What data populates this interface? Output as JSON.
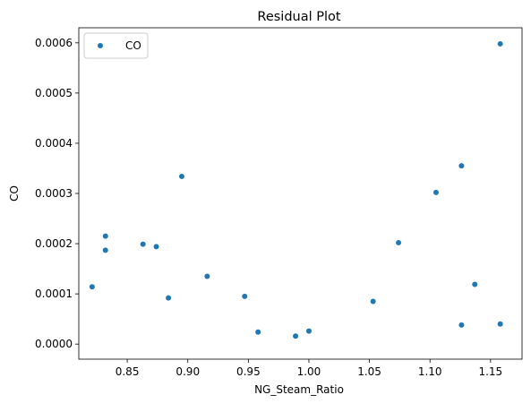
{
  "chart_data": {
    "type": "scatter",
    "title": "Residual Plot",
    "xlabel": "NG_Steam_Ratio",
    "ylabel": "CO",
    "xlim": [
      0.81,
      1.176
    ],
    "ylim": [
      -3e-05,
      0.00063
    ],
    "xticks": [
      0.85,
      0.9,
      0.95,
      1.0,
      1.05,
      1.1,
      1.15
    ],
    "xtick_labels": [
      "0.85",
      "0.90",
      "0.95",
      "1.00",
      "1.05",
      "1.10",
      "1.15"
    ],
    "yticks": [
      0.0,
      0.0001,
      0.0002,
      0.0003,
      0.0004,
      0.0005,
      0.0006
    ],
    "ytick_labels": [
      "0.0000",
      "0.0001",
      "0.0002",
      "0.0003",
      "0.0004",
      "0.0005",
      "0.0006"
    ],
    "grid": false,
    "legend": {
      "placement": "upper-left",
      "entries": [
        "CO"
      ]
    },
    "series": [
      {
        "name": "CO",
        "color": "#1f77b4",
        "points": [
          {
            "x": 0.821,
            "y": 0.000114
          },
          {
            "x": 0.832,
            "y": 0.000215
          },
          {
            "x": 0.832,
            "y": 0.000187
          },
          {
            "x": 0.863,
            "y": 0.000199
          },
          {
            "x": 0.874,
            "y": 0.000194
          },
          {
            "x": 0.884,
            "y": 9.2e-05
          },
          {
            "x": 0.895,
            "y": 0.000334
          },
          {
            "x": 0.916,
            "y": 0.000135
          },
          {
            "x": 0.947,
            "y": 9.5e-05
          },
          {
            "x": 0.958,
            "y": 2.4e-05
          },
          {
            "x": 0.989,
            "y": 1.6e-05
          },
          {
            "x": 1.0,
            "y": 2.6e-05
          },
          {
            "x": 1.053,
            "y": 8.5e-05
          },
          {
            "x": 1.074,
            "y": 0.000202
          },
          {
            "x": 1.105,
            "y": 0.000302
          },
          {
            "x": 1.126,
            "y": 0.000355
          },
          {
            "x": 1.126,
            "y": 3.8e-05
          },
          {
            "x": 1.137,
            "y": 0.000119
          },
          {
            "x": 1.158,
            "y": 0.000598
          },
          {
            "x": 1.158,
            "y": 4e-05
          }
        ]
      }
    ]
  }
}
